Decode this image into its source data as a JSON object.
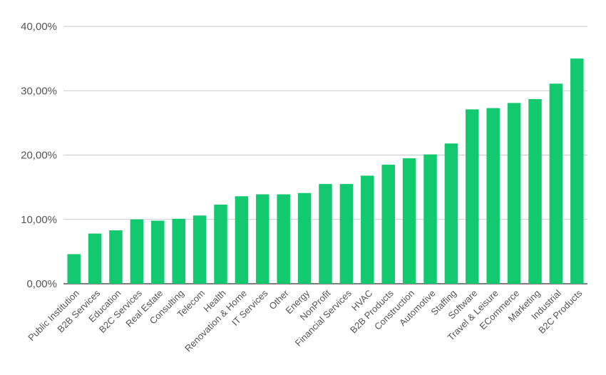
{
  "chart_data": {
    "type": "bar",
    "categories": [
      "Public Institution",
      "B2B Services",
      "Education",
      "B2C Services",
      "Real Estate",
      "Consulting",
      "Telecom",
      "Health",
      "Renovation & Home",
      "IT Services",
      "Other",
      "Energy",
      "NonProfit",
      "Financial Services",
      "HVAC",
      "B2B Products",
      "Construction",
      "Automotive",
      "Staffing",
      "Software",
      "Travel & Leisure",
      "ECommerce",
      "Marketing",
      "Industrial",
      "B2C Products"
    ],
    "values": [
      4.6,
      7.8,
      8.3,
      10.0,
      9.8,
      10.1,
      10.6,
      12.3,
      13.6,
      13.9,
      13.9,
      14.1,
      15.5,
      15.5,
      16.8,
      18.5,
      19.5,
      20.1,
      21.8,
      27.1,
      27.3,
      28.1,
      28.7,
      31.1,
      35.0
    ],
    "ylim": [
      0,
      40
    ],
    "yticks": [
      0,
      10,
      20,
      30,
      40
    ],
    "ytick_labels": [
      "0,00%",
      "10,00%",
      "20,00%",
      "30,00%",
      "40,00%"
    ],
    "grid": true,
    "bar_color": "#13C96F",
    "grid_color": "#CCCCCC",
    "label_color": "#555555"
  }
}
